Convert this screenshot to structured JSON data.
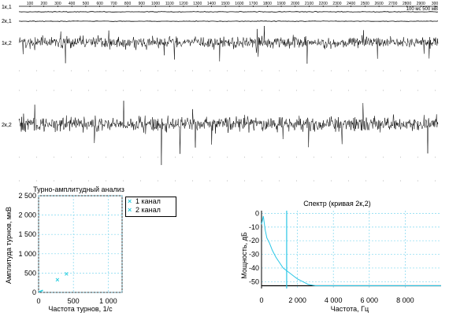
{
  "timeline": {
    "ticks": [
      "100",
      "200",
      "300",
      "400",
      "500",
      "600",
      "700",
      "800",
      "900",
      "1000",
      "1100",
      "1200",
      "1300",
      "1400",
      "1500",
      "1600",
      "1700",
      "1800",
      "1900",
      "2000",
      "2100",
      "2200",
      "2300",
      "2400",
      "2500",
      "2600",
      "2700",
      "2800",
      "2900",
      "300"
    ],
    "scale_label": "100 мс 500 мВ"
  },
  "channels": [
    {
      "label": "1к,1"
    },
    {
      "label": "2к,1"
    },
    {
      "label": "1к,2"
    },
    {
      "label": "2к,2"
    }
  ],
  "chart_data": [
    {
      "type": "scatter",
      "title": "Турно-амплитудный анализ",
      "xlabel": "Частота турнов, 1/с",
      "ylabel": "Амплитуда турнов, мкВ",
      "xlim": [
        0,
        1200
      ],
      "ylim": [
        0,
        2500
      ],
      "xticks": [
        "0",
        "500",
        "1 000"
      ],
      "yticks": [
        "2 500",
        "2 000",
        "1 500",
        "1 000",
        "500",
        "0"
      ],
      "grid": true,
      "legend": "top-right",
      "series": [
        {
          "name": "1 канал",
          "x": [
            270
          ],
          "y": [
            330
          ]
        },
        {
          "name": "2 канал",
          "x": [
            400
          ],
          "y": [
            480
          ]
        }
      ],
      "colors": {
        "marker": "#2fd0e0",
        "grid": "#7fd7ef"
      }
    },
    {
      "type": "line",
      "title": "Спектр (кривая 2к,2)",
      "xlabel": "Частота, Гц",
      "ylabel": "Мощность, дБ",
      "xlim": [
        0,
        10000
      ],
      "ylim": [
        -55,
        2
      ],
      "xticks": [
        "0",
        "2 000",
        "4 000",
        "6 000",
        "8 000"
      ],
      "yticks": [
        "0",
        "-10",
        "-20",
        "-30",
        "-40",
        "-50"
      ],
      "grid": true,
      "marker_line_x": 1400,
      "series": [
        {
          "x": [
            0,
            100,
            200,
            300,
            450,
            600,
            800,
            1000,
            1200,
            1400,
            1600,
            1800,
            2000,
            2300,
            2600,
            3000,
            10000
          ],
          "y": [
            -8,
            -2,
            -12,
            -18,
            -22,
            -27,
            -32,
            -36,
            -40,
            -42,
            -44,
            -46,
            -48,
            -50,
            -52,
            -53,
            -53
          ]
        }
      ],
      "colors": {
        "line": "#29c6e6",
        "grid": "#7fd7ef"
      }
    }
  ]
}
